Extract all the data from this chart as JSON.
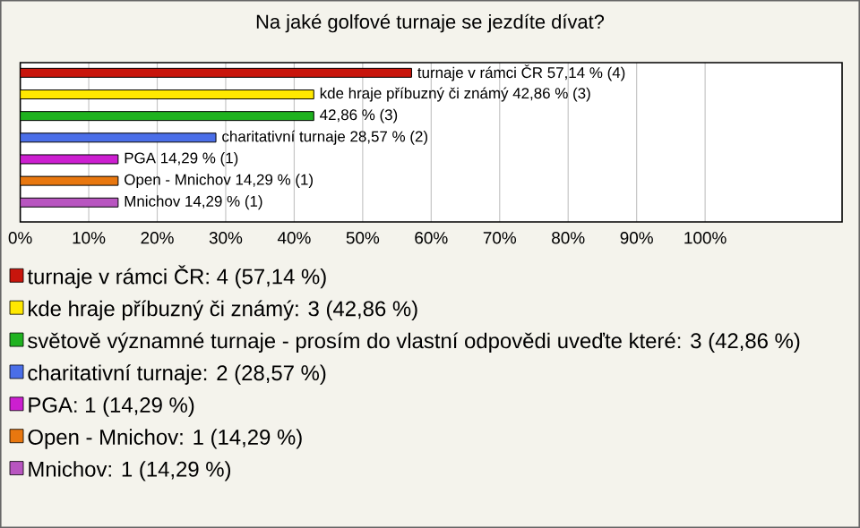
{
  "chart_data": {
    "type": "bar",
    "orientation": "horizontal",
    "title": "Na jaké golfové turnaje se jezdíte dívat?",
    "categories": [
      null,
      null,
      null,
      null,
      null,
      null,
      null
    ],
    "series": [
      {
        "name": "turnaje v rámci ČR: 4 (57,14 %)",
        "color": "#c8150c",
        "values": [
          57.14,
          null,
          null,
          null,
          null,
          null,
          null
        ],
        "value_labels": [
          "turnaje v rámci ČR 57,14 % (4)",
          null,
          null,
          null,
          null,
          null,
          null
        ]
      },
      {
        "name": "kde hraje příbuzný či známý: 3 (42,86 %)",
        "color": "#ffe800",
        "values": [
          null,
          42.86,
          null,
          null,
          null,
          null,
          null
        ],
        "value_labels": [
          null,
          "kde hraje příbuzný či známý 42,86 % (3)",
          null,
          null,
          null,
          null,
          null
        ]
      },
      {
        "name": "světově významné turnaje - prosím do vlastní odpovědi uveďte které: 3 (42,86 %)",
        "color": "#1fb21f",
        "values": [
          null,
          null,
          42.86,
          null,
          null,
          null,
          null
        ],
        "value_labels": [
          null,
          null,
          "42,86 % (3)",
          null,
          null,
          null,
          null
        ]
      },
      {
        "name": "charitativní turnaje: 2 (28,57 %)",
        "color": "#4a6ee8",
        "values": [
          null,
          null,
          null,
          28.57,
          null,
          null,
          null
        ],
        "value_labels": [
          null,
          null,
          null,
          "charitativní turnaje 28,57 % (2)",
          null,
          null,
          null
        ]
      },
      {
        "name": "PGA: 1 (14,29 %)",
        "color": "#cc1fd0",
        "values": [
          null,
          null,
          null,
          null,
          14.29,
          null,
          null
        ],
        "value_labels": [
          null,
          null,
          null,
          null,
          "PGA 14,29 % (1)",
          null,
          null
        ]
      },
      {
        "name": "Open - Mnichov: 1 (14,29 %)",
        "color": "#e8770f",
        "values": [
          null,
          null,
          null,
          null,
          null,
          14.29,
          null
        ],
        "value_labels": [
          null,
          null,
          null,
          null,
          null,
          "Open - Mnichov 14,29 % (1)",
          null
        ]
      },
      {
        "name": "Mnichov: 1 (14,29 %)",
        "color": "#b855c0",
        "values": [
          null,
          null,
          null,
          null,
          null,
          null,
          14.29
        ],
        "value_labels": [
          null,
          null,
          null,
          null,
          null,
          null,
          "Mnichov 14,29 % (1)"
        ]
      }
    ],
    "xlim": [
      0,
      120
    ],
    "xticks": [
      {
        "value": 0,
        "label": "0%"
      },
      {
        "value": 10,
        "label": "10%"
      },
      {
        "value": 20,
        "label": "20%"
      },
      {
        "value": 30,
        "label": "30%"
      },
      {
        "value": 40,
        "label": "40%"
      },
      {
        "value": 50,
        "label": "50%"
      },
      {
        "value": 60,
        "label": "60%"
      },
      {
        "value": 70,
        "label": "70%"
      },
      {
        "value": 80,
        "label": "80%"
      },
      {
        "value": 90,
        "label": "90%"
      },
      {
        "value": 100,
        "label": "100%"
      }
    ],
    "grid": "x",
    "legend": "bottom"
  }
}
